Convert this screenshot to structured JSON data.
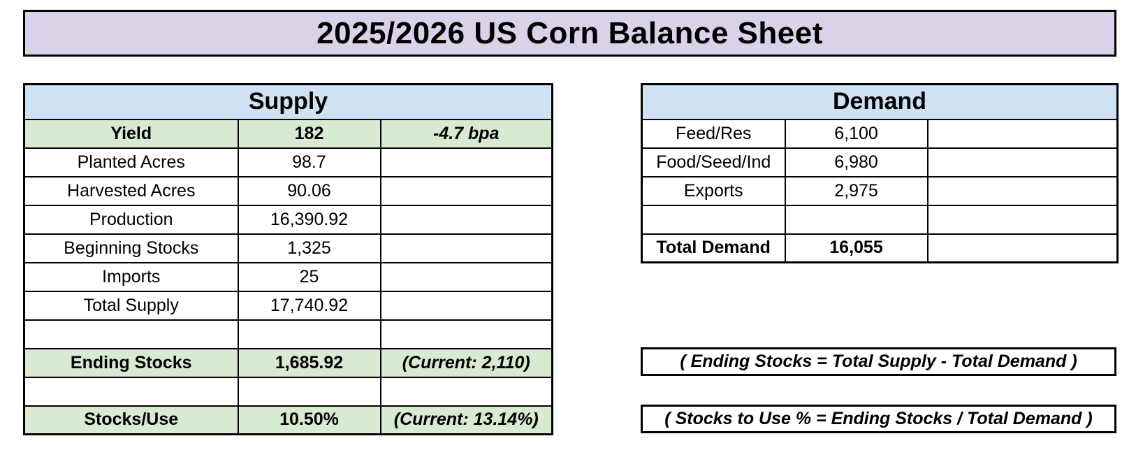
{
  "title": "2025/2026 US Corn Balance Sheet",
  "colors": {
    "page_bg": "#FFFFFF",
    "title_bg": "#D9D2E9",
    "section_header_bg": "#CFE2F3",
    "highlight_row_bg": "#D9EAD3",
    "border": "#000000"
  },
  "supply": {
    "header": "Supply",
    "rows": [
      {
        "label": "Yield",
        "value": "182",
        "note": "-4.7 bpa",
        "highlight": true,
        "bold": true
      },
      {
        "label": "Planted Acres",
        "value": "98.7",
        "note": ""
      },
      {
        "label": "Harvested Acres",
        "value": "90.06",
        "note": ""
      },
      {
        "label": "Production",
        "value": "16,390.92",
        "note": ""
      },
      {
        "label": "Beginning Stocks",
        "value": "1,325",
        "note": ""
      },
      {
        "label": "Imports",
        "value": "25",
        "note": ""
      },
      {
        "label": "Total Supply",
        "value": "17,740.92",
        "note": ""
      },
      {
        "label": "",
        "value": "",
        "note": ""
      },
      {
        "label": "Ending Stocks",
        "value": "1,685.92",
        "note": "(Current: 2,110)",
        "highlight": true,
        "bold": true
      },
      {
        "label": "",
        "value": "",
        "note": ""
      },
      {
        "label": "Stocks/Use",
        "value": "10.50%",
        "note": "(Current: 13.14%)",
        "highlight": true,
        "bold": true
      }
    ]
  },
  "demand": {
    "header": "Demand",
    "rows": [
      {
        "label": "Feed/Res",
        "value": "6,100",
        "note": ""
      },
      {
        "label": "Food/Seed/Ind",
        "value": "6,980",
        "note": ""
      },
      {
        "label": "Exports",
        "value": "2,975",
        "note": ""
      },
      {
        "label": "",
        "value": "",
        "note": ""
      },
      {
        "label": "Total Demand",
        "value": "16,055",
        "note": "",
        "bold": true,
        "label_align": "left"
      }
    ]
  },
  "formulas": {
    "ending_stocks": "( Ending Stocks = Total Supply - Total Demand )",
    "stocks_to_use": "( Stocks to Use % = Ending Stocks / Total Demand )"
  }
}
